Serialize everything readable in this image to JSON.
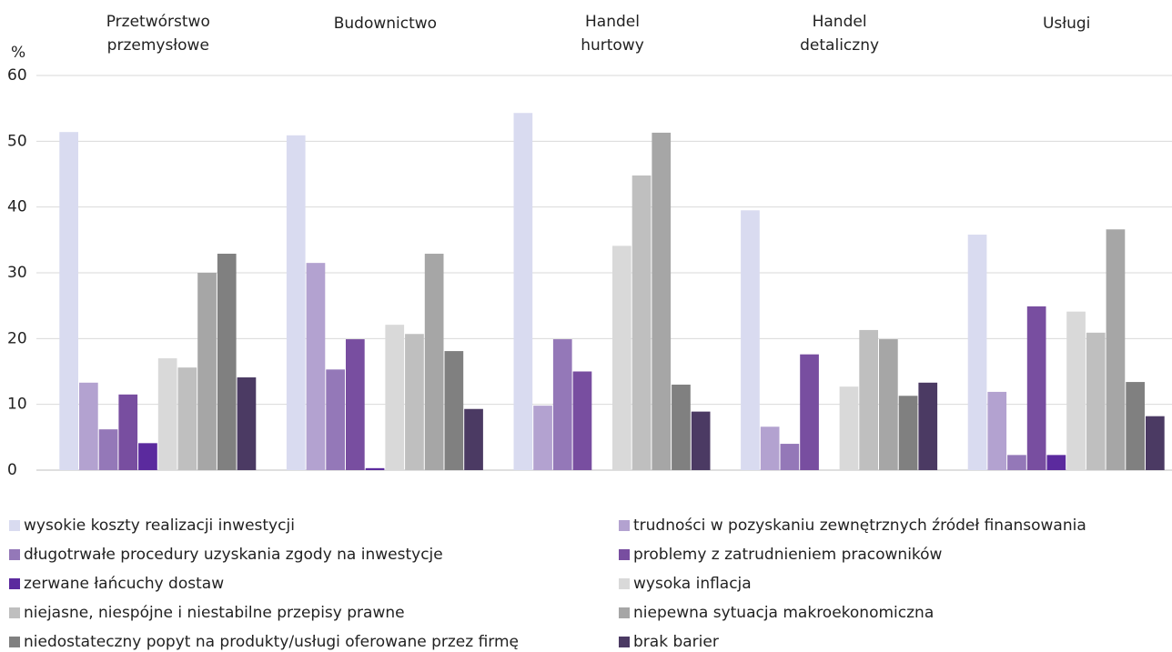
{
  "chart_data": {
    "type": "bar",
    "y_unit": "%",
    "categories": [
      [
        "Przetwórstwo",
        "przemysłowe"
      ],
      [
        "Budownictwo"
      ],
      [
        "Handel",
        "hurtowy"
      ],
      [
        "Handel",
        "detaliczny"
      ],
      [
        "Usługi"
      ]
    ],
    "ylim": [
      0,
      60
    ],
    "yticks": [
      0,
      10,
      20,
      30,
      40,
      50,
      60
    ],
    "grid": true,
    "series": [
      {
        "name": "wysokie koszty realizacji inwestycji",
        "color": "#d9dbf0",
        "values": [
          51.4,
          50.9,
          54.3,
          39.5,
          35.8
        ]
      },
      {
        "name": "trudności w pozyskaniu zewnętrznych źródeł finansowania",
        "color": "#b3a2d0",
        "values": [
          13.3,
          31.5,
          9.8,
          6.6,
          11.9
        ]
      },
      {
        "name": "długotrwałe procedury uzyskania zgody na inwestycje",
        "color": "#9478b8",
        "values": [
          6.2,
          15.3,
          19.9,
          4.0,
          2.3
        ]
      },
      {
        "name": "problemy z zatrudnieniem pracowników",
        "color": "#784ea0",
        "values": [
          11.5,
          19.9,
          15.0,
          17.6,
          24.9
        ]
      },
      {
        "name": "zerwane łańcuchy dostaw",
        "color": "#5b2a9e",
        "values": [
          4.1,
          0.3,
          0,
          0,
          2.3
        ]
      },
      {
        "name": "wysoka inflacja",
        "color": "#d9d9d9",
        "values": [
          17.0,
          22.1,
          34.1,
          12.7,
          24.1
        ]
      },
      {
        "name": "niejasne, niespójne i niestabilne przepisy prawne",
        "color": "#bfbfbf",
        "values": [
          15.6,
          20.7,
          44.8,
          21.3,
          20.9
        ]
      },
      {
        "name": "niepewna sytuacja makroekonomiczna",
        "color": "#a6a6a6",
        "values": [
          30.0,
          32.9,
          51.3,
          19.9,
          36.6
        ]
      },
      {
        "name": "niedostateczny popyt na produkty/usługi oferowane przez firmę",
        "color": "#808080",
        "values": [
          32.9,
          18.1,
          13.0,
          11.3,
          13.4
        ]
      },
      {
        "name": "brak barier",
        "color": "#4b3a63",
        "values": [
          14.1,
          9.3,
          8.9,
          13.3,
          8.2
        ]
      }
    ]
  }
}
